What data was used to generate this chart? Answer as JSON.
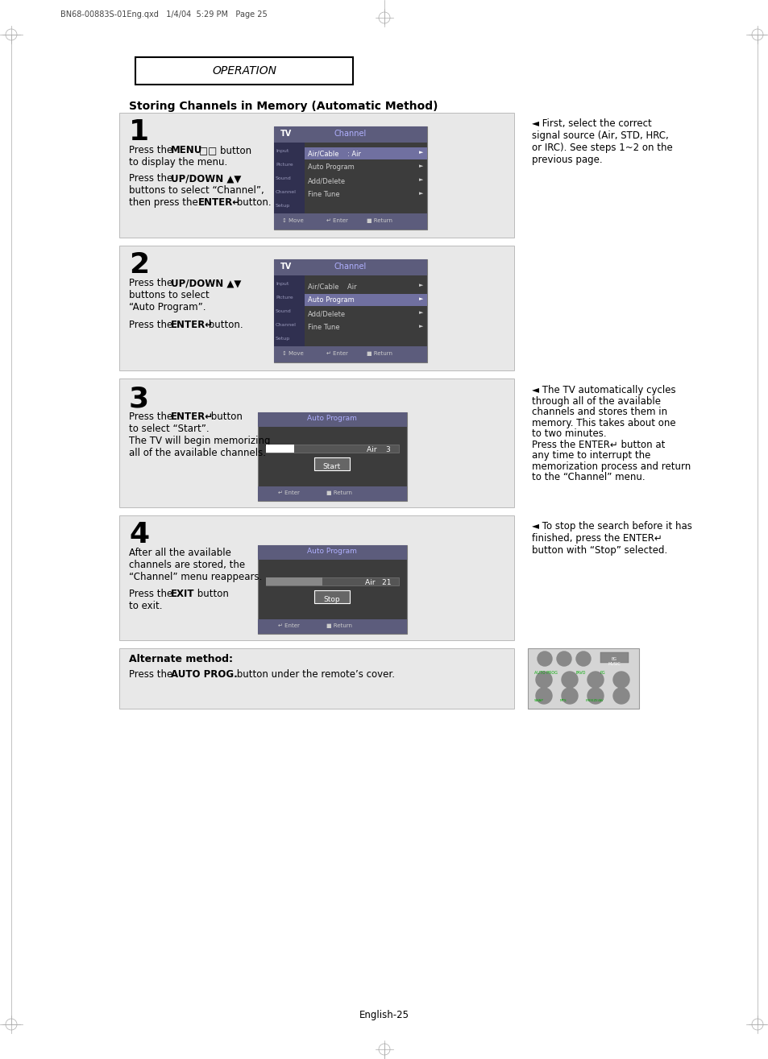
{
  "page_header_text": "BN68-00883S-01Eng.qxd   1/4/04  5:29 PM   Page 25",
  "background_color": "#ffffff",
  "page_number": "English-25",
  "step1_note": [
    "◄ First, select the correct",
    "signal source (Air, STD, HRC,",
    "or IRC). See steps 1~2 on the",
    "previous page."
  ],
  "step3_note": [
    "◄ The TV automatically cycles",
    "through all of the available",
    "channels and stores them in",
    "memory. This takes about one",
    "to two minutes.",
    "Press the ENTER↵ button at",
    "any time to interrupt the",
    "memorization process and return",
    "to the “Channel” menu."
  ],
  "step4_note": [
    "◄ To stop the search before it has",
    "finished, press the ENTER↵",
    "button with “Stop” selected."
  ]
}
